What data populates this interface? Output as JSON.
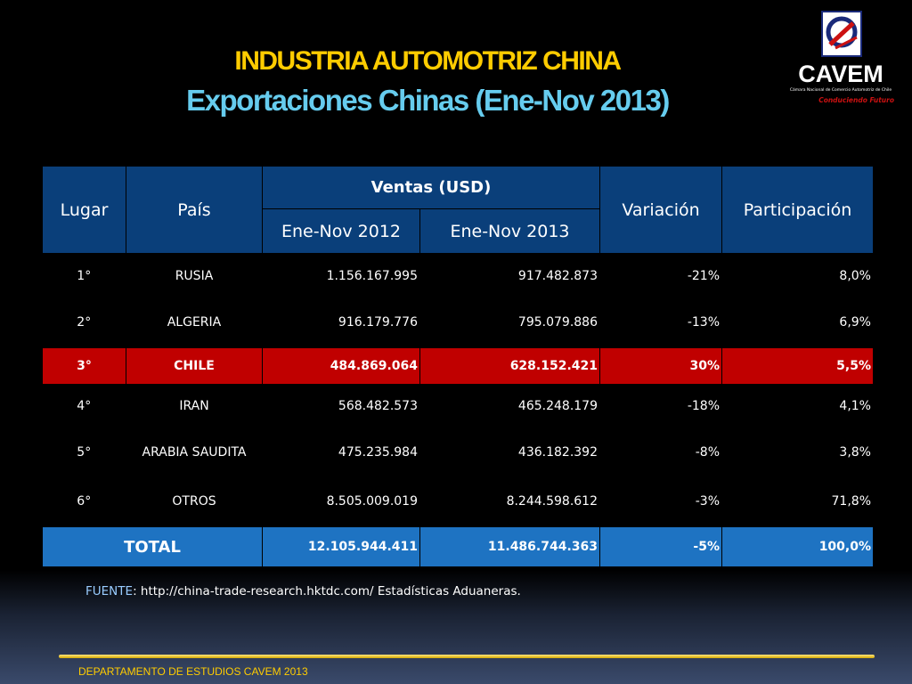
{
  "title": "INDUSTRIA AUTOMOTRIZ CHINA",
  "subtitle": "Exportaciones Chinas (Ene-Nov 2013)",
  "logo": {
    "name": "CAVEM",
    "sub": "Cámara Nacional de Comercio Automotriz de Chile",
    "slogan": "Conduciendo Futuro",
    "accent": "#cc1111"
  },
  "table": {
    "headers": {
      "lugar": "Lugar",
      "pais": "País",
      "ventas": "Ventas (USD)",
      "y2012": "Ene-Nov 2012",
      "y2013": "Ene-Nov 2013",
      "variacion": "Variación",
      "participacion": "Participación"
    },
    "rows": [
      {
        "lugar": "1°",
        "pais": "RUSIA",
        "v2012": "1.156.167.995",
        "v2013": "917.482.873",
        "var": "-21%",
        "part": "8,0%"
      },
      {
        "lugar": "2°",
        "pais": "ALGERIA",
        "v2012": "916.179.776",
        "v2013": "795.079.886",
        "var": "-13%",
        "part": "6,9%"
      },
      {
        "lugar": "3°",
        "pais": "CHILE",
        "v2012": "484.869.064",
        "v2013": "628.152.421",
        "var": "30%",
        "part": "5,5%"
      },
      {
        "lugar": "4°",
        "pais": "IRAN",
        "v2012": "568.482.573",
        "v2013": "465.248.179",
        "var": "-18%",
        "part": "4,1%"
      },
      {
        "lugar": "5°",
        "pais": "ARABIA SAUDITA",
        "v2012": "475.235.984",
        "v2013": "436.182.392",
        "var": "-8%",
        "part": "3,8%"
      },
      {
        "lugar": "6°",
        "pais": "OTROS",
        "v2012": "8.505.009.019",
        "v2013": "8.244.598.612",
        "var": "-3%",
        "part": "71,8%"
      }
    ],
    "total": {
      "label": "TOTAL",
      "v2012": "12.105.944.411",
      "v2013": "11.486.744.363",
      "var": "-5%",
      "part": "100,0%"
    }
  },
  "source": {
    "label": "FUENTE",
    "text": ": http://china-trade-research.hktdc.com/  Estadísticas Aduaneras."
  },
  "footer": "DEPARTAMENTO DE ESTUDIOS CAVEM 2013",
  "colors": {
    "title": "#ffcc00",
    "subtitle": "#66ccee",
    "header_bg": "#0a3f7a",
    "highlight_bg": "#c00000",
    "total_bg": "#1e73c2"
  }
}
